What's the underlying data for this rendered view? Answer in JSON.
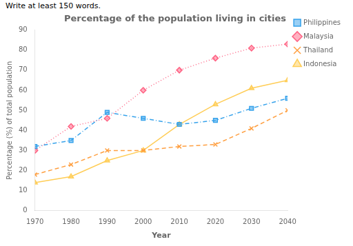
{
  "chart_data": {
    "type": "line",
    "title": "Percentage of the population living in cities",
    "annotation": "Write at least 150 words.",
    "xlabel": "Year",
    "ylabel": "Percentage (%) of total population",
    "x": [
      1970,
      1980,
      1990,
      2000,
      2010,
      2020,
      2030,
      2040
    ],
    "series": [
      {
        "name": "Philippines",
        "values": [
          32,
          35,
          49,
          46,
          43,
          45,
          51,
          56
        ],
        "marker": "square",
        "line_style": "dashdot"
      },
      {
        "name": "Malaysia",
        "values": [
          30,
          42,
          46,
          60,
          70,
          76,
          81,
          83
        ],
        "marker": "diamond",
        "line_style": "dotted"
      },
      {
        "name": "Thailand",
        "values": [
          18,
          23,
          30,
          30,
          32,
          33,
          41,
          50
        ],
        "marker": "x",
        "line_style": "dashed"
      },
      {
        "name": "Indonesia",
        "values": [
          14,
          17,
          25,
          30,
          43,
          53,
          61,
          65
        ],
        "marker": "triangle",
        "line_style": "solid"
      }
    ],
    "xlim": [
      1970,
      2040
    ],
    "xticks": [
      1970,
      1980,
      1990,
      2000,
      2010,
      2020,
      2030,
      2040
    ],
    "ylim": [
      0,
      90
    ],
    "yticks": [
      0,
      10,
      20,
      30,
      40,
      50,
      60,
      70,
      80,
      90
    ],
    "grid": false,
    "legend": "right"
  }
}
